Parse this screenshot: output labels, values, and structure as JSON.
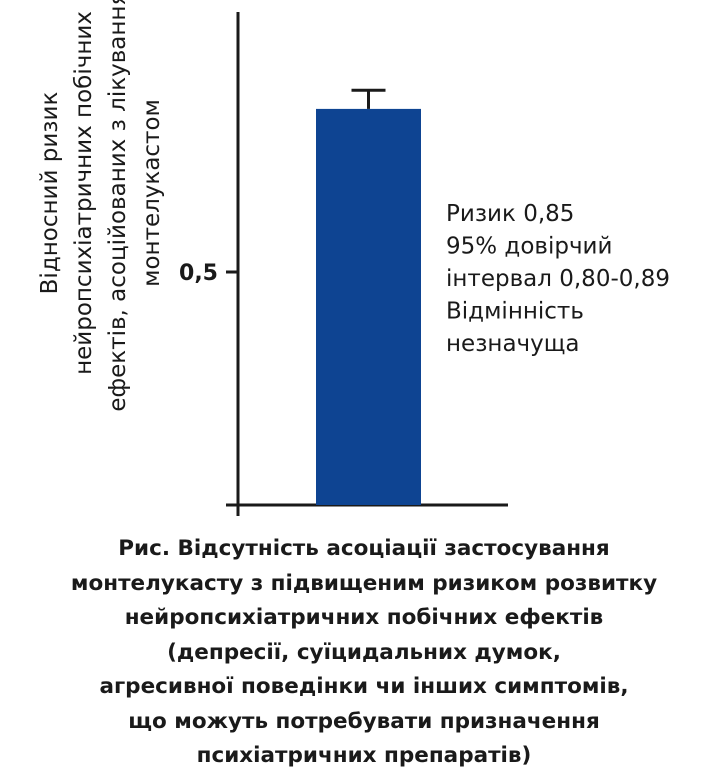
{
  "chart_data": {
    "type": "bar",
    "categories": [
      ""
    ],
    "values": [
      0.85
    ],
    "error_upper": [
      0.89
    ],
    "error_lower": [
      0.8
    ],
    "bar_color": "#0e4492",
    "ylim": [
      0,
      1.08
    ],
    "yticks": [
      0,
      0.5
    ],
    "ytick_labels": [
      "",
      "0,5"
    ],
    "ylabel_lines": [
      "Відносний ризик",
      "нейропсихіатричних побічних",
      "ефектів, асоційованих з лікуванням",
      "монтелукастом"
    ],
    "annotation_lines": [
      "Ризик 0,85",
      "95% довірчий",
      "інтервал 0,80-0,89",
      "Відмінність",
      "незначуща"
    ],
    "grid": false,
    "legend": "none"
  },
  "caption_lines": [
    "Рис. Відсутність асоціації застосування",
    "монтелукасту з підвищеним ризиком розвитку",
    "нейропсихіатричних побічних ефектів",
    "(депресії, суїцидальних думок,",
    "агресивної поведінки чи інших симптомів,",
    "що можуть потребувати призначення",
    "психіатричних препаратів)"
  ]
}
